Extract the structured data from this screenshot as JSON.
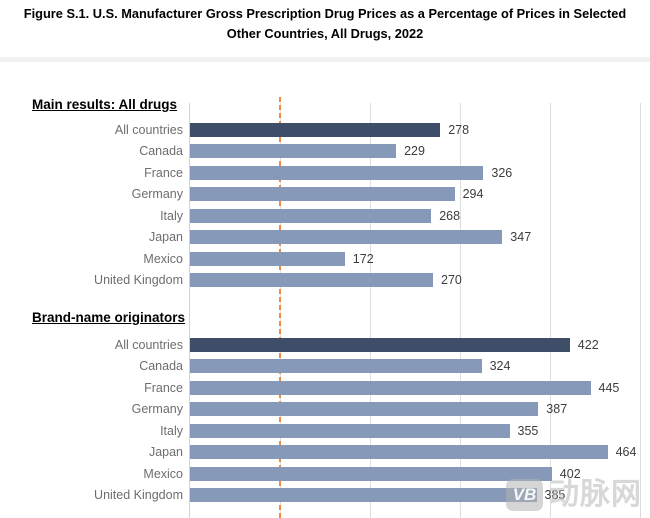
{
  "title": "Figure S.1. U.S. Manufacturer Gross Prescription Drug Prices as a Percentage of Prices in Selected Other Countries, All Drugs, 2022",
  "watermark": {
    "logo_text": "VB",
    "text": "动脉网"
  },
  "chart_data": {
    "type": "bar",
    "orientation": "horizontal",
    "title": "Figure S.1. U.S. Manufacturer Gross Prescription Drug Prices as a Percentage of Prices in Selected Other Countries, All Drugs, 2022",
    "unit": "percent of other-country price",
    "x_axis": {
      "min": 0,
      "max": 500,
      "gridline_interval": 100,
      "tick_labels_visible": false,
      "grid": true
    },
    "reference_line": {
      "value": 100,
      "style": "dashed",
      "color": "#E88C46"
    },
    "highlight_category": "All countries",
    "colors": {
      "highlight_bar": "#3F4E68",
      "default_bar": "#8699B8",
      "gridline": "#dedede"
    },
    "groups": [
      {
        "heading": "Main results: All drugs",
        "categories": [
          "All countries",
          "Canada",
          "France",
          "Germany",
          "Italy",
          "Japan",
          "Mexico",
          "United Kingdom"
        ],
        "values": [
          278,
          229,
          326,
          294,
          268,
          347,
          172,
          270
        ]
      },
      {
        "heading": "Brand-name originators",
        "categories": [
          "All countries",
          "Canada",
          "France",
          "Germany",
          "Italy",
          "Japan",
          "Mexico",
          "United Kingdom"
        ],
        "values": [
          422,
          324,
          445,
          387,
          355,
          464,
          402,
          385
        ]
      }
    ]
  }
}
